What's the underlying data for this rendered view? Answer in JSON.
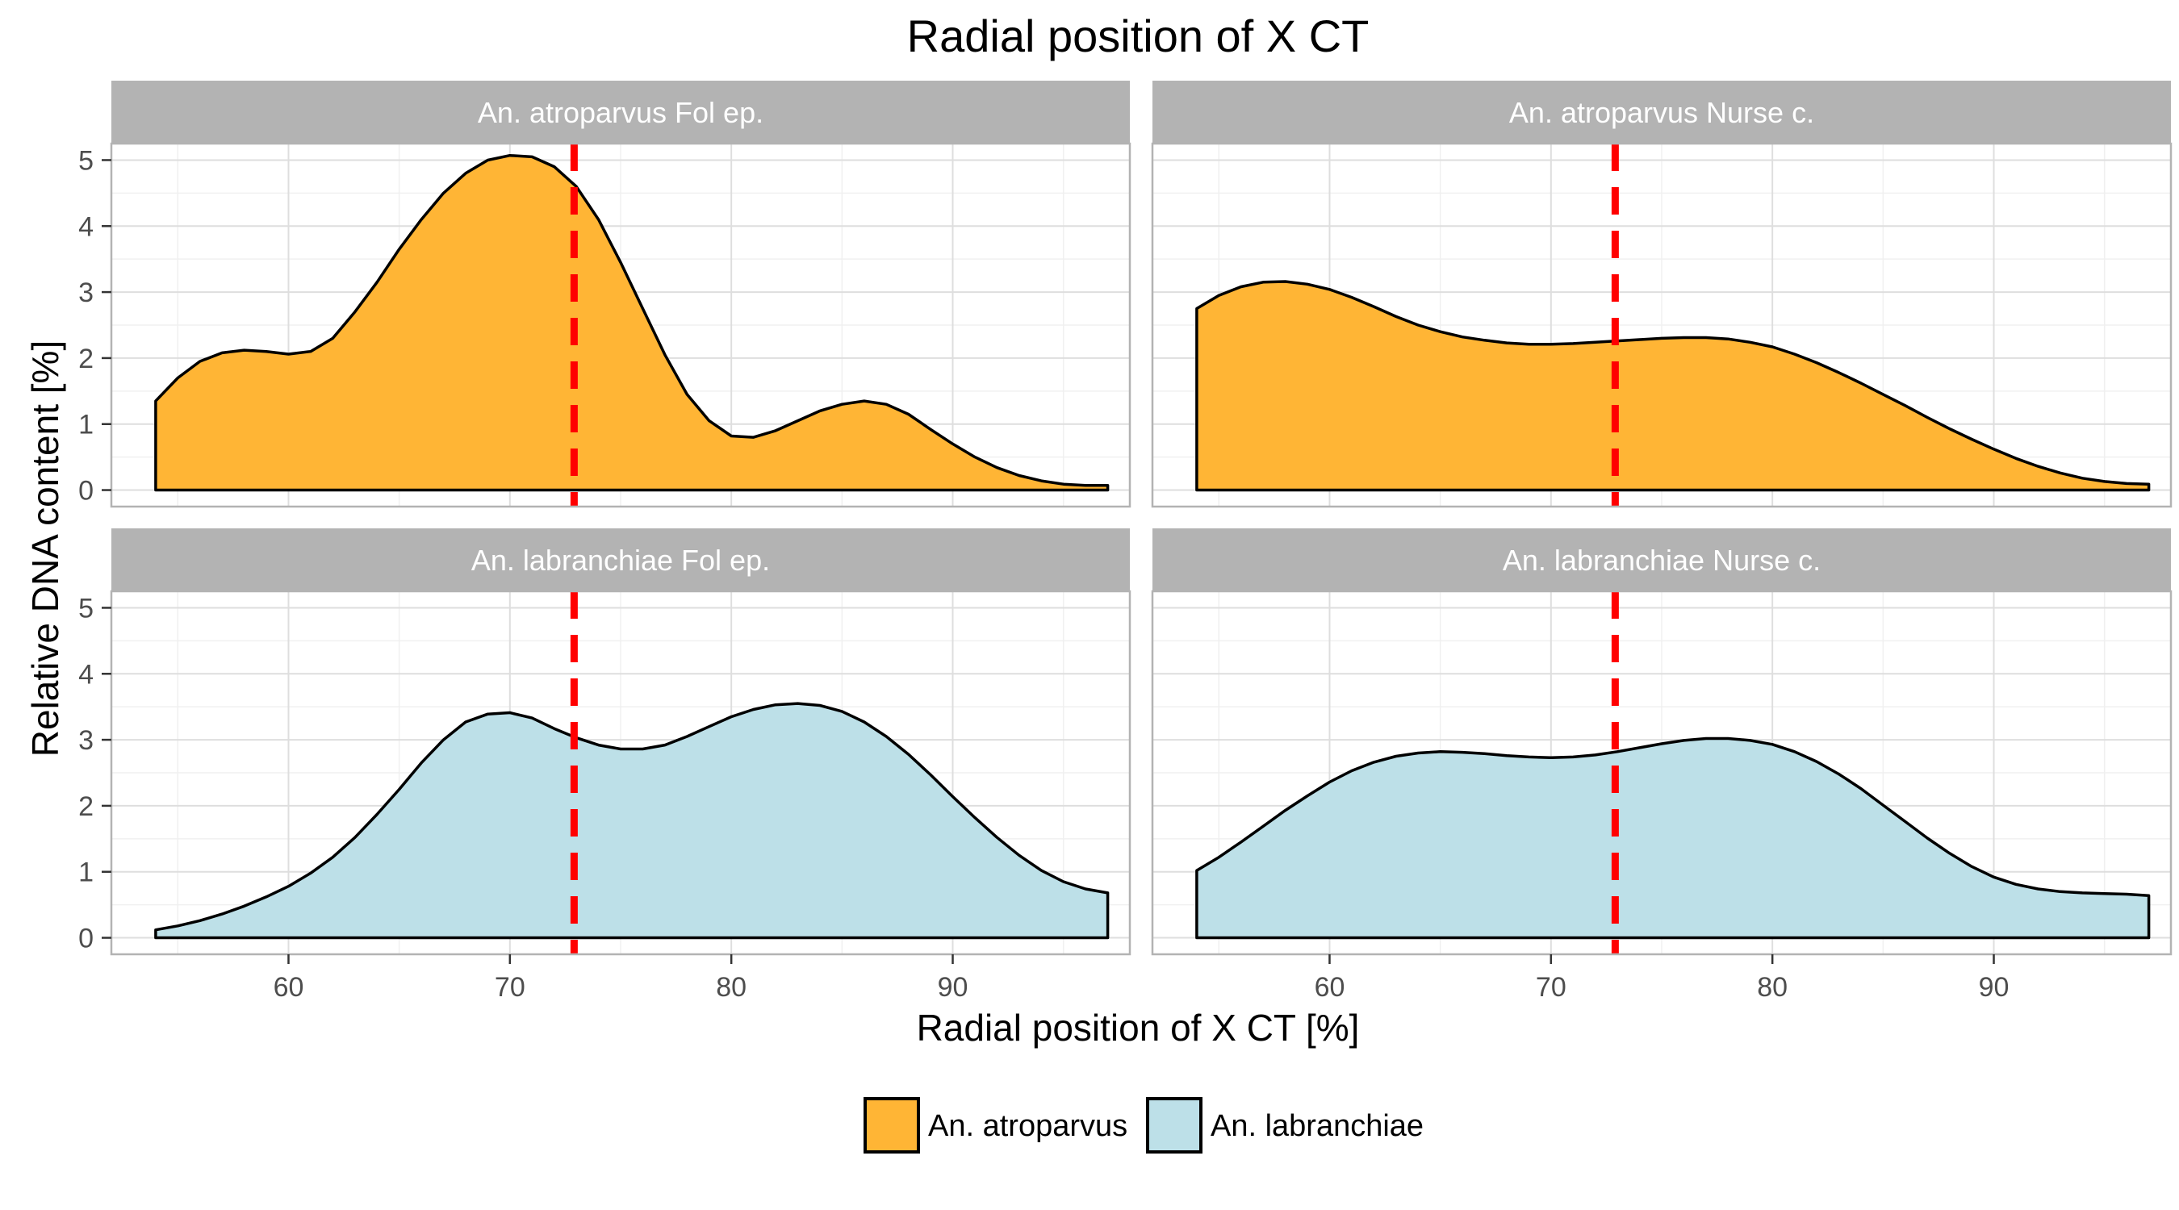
{
  "chart_data": {
    "type": "area",
    "title": "Radial position of X CT",
    "xlabel": "Radial position of X CT [%]",
    "ylabel": "Relative DNA content [%]",
    "xlim": [
      52,
      98
    ],
    "ylim": [
      -0.25,
      5.25
    ],
    "x_ticks": [
      60,
      70,
      80,
      90
    ],
    "y_ticks": [
      0,
      1,
      2,
      3,
      4,
      5
    ],
    "x_ticks_minor": [
      55,
      65,
      75,
      85,
      95
    ],
    "y_ticks_minor": [
      0.5,
      1.5,
      2.5,
      3.5,
      4.5
    ],
    "grid": true,
    "legend_position": "bottom",
    "reference_line": {
      "x": 72.9,
      "color": "#ff0000",
      "style": "dashed"
    },
    "series": [
      {
        "name": "An. atroparvus",
        "color": "#ffb535"
      },
      {
        "name": "An. labranchiae",
        "color": "#bde0e8"
      }
    ],
    "panels": [
      {
        "label": "An. atroparvus Fol ep.",
        "series": "An. atroparvus",
        "row": 0,
        "col": 0,
        "x": [
          54,
          55,
          56,
          57,
          58,
          59,
          60,
          61,
          62,
          63,
          64,
          65,
          66,
          67,
          68,
          69,
          70,
          71,
          72,
          73,
          74,
          75,
          76,
          77,
          78,
          79,
          80,
          81,
          82,
          83,
          84,
          85,
          86,
          87,
          88,
          89,
          90,
          91,
          92,
          93,
          94,
          95,
          96,
          97
        ],
        "y": [
          1.35,
          1.7,
          1.95,
          2.08,
          2.12,
          2.1,
          2.06,
          2.1,
          2.3,
          2.7,
          3.15,
          3.65,
          4.1,
          4.5,
          4.8,
          5.0,
          5.07,
          5.05,
          4.9,
          4.6,
          4.1,
          3.45,
          2.75,
          2.05,
          1.45,
          1.05,
          0.82,
          0.8,
          0.9,
          1.05,
          1.2,
          1.3,
          1.35,
          1.3,
          1.15,
          0.92,
          0.7,
          0.5,
          0.34,
          0.22,
          0.14,
          0.09,
          0.07,
          0.07
        ]
      },
      {
        "label": "An. atroparvus Nurse c.",
        "series": "An. atroparvus",
        "row": 0,
        "col": 1,
        "x": [
          54,
          55,
          56,
          57,
          58,
          59,
          60,
          61,
          62,
          63,
          64,
          65,
          66,
          67,
          68,
          69,
          70,
          71,
          72,
          73,
          74,
          75,
          76,
          77,
          78,
          79,
          80,
          81,
          82,
          83,
          84,
          85,
          86,
          87,
          88,
          89,
          90,
          91,
          92,
          93,
          94,
          95,
          96,
          97
        ],
        "y": [
          2.75,
          2.95,
          3.08,
          3.15,
          3.16,
          3.12,
          3.04,
          2.92,
          2.78,
          2.63,
          2.5,
          2.4,
          2.32,
          2.27,
          2.23,
          2.21,
          2.21,
          2.22,
          2.24,
          2.26,
          2.28,
          2.3,
          2.31,
          2.31,
          2.29,
          2.24,
          2.17,
          2.06,
          1.93,
          1.78,
          1.62,
          1.45,
          1.28,
          1.1,
          0.93,
          0.77,
          0.62,
          0.48,
          0.36,
          0.26,
          0.18,
          0.13,
          0.1,
          0.09
        ]
      },
      {
        "label": "An. labranchiae Fol ep.",
        "series": "An. labranchiae",
        "row": 1,
        "col": 0,
        "x": [
          54,
          55,
          56,
          57,
          58,
          59,
          60,
          61,
          62,
          63,
          64,
          65,
          66,
          67,
          68,
          69,
          70,
          71,
          72,
          73,
          74,
          75,
          76,
          77,
          78,
          79,
          80,
          81,
          82,
          83,
          84,
          85,
          86,
          87,
          88,
          89,
          90,
          91,
          92,
          93,
          94,
          95,
          96,
          97
        ],
        "y": [
          0.12,
          0.18,
          0.26,
          0.36,
          0.48,
          0.62,
          0.78,
          0.98,
          1.22,
          1.52,
          1.87,
          2.25,
          2.65,
          3.0,
          3.27,
          3.39,
          3.41,
          3.33,
          3.17,
          3.03,
          2.92,
          2.86,
          2.86,
          2.92,
          3.05,
          3.2,
          3.35,
          3.46,
          3.53,
          3.55,
          3.52,
          3.43,
          3.27,
          3.05,
          2.78,
          2.47,
          2.14,
          1.82,
          1.52,
          1.25,
          1.02,
          0.85,
          0.74,
          0.68
        ]
      },
      {
        "label": "An. labranchiae Nurse c.",
        "series": "An. labranchiae",
        "row": 1,
        "col": 1,
        "x": [
          54,
          55,
          56,
          57,
          58,
          59,
          60,
          61,
          62,
          63,
          64,
          65,
          66,
          67,
          68,
          69,
          70,
          71,
          72,
          73,
          74,
          75,
          76,
          77,
          78,
          79,
          80,
          81,
          82,
          83,
          84,
          85,
          86,
          87,
          88,
          89,
          90,
          91,
          92,
          93,
          94,
          95,
          96,
          97
        ],
        "y": [
          1.02,
          1.22,
          1.45,
          1.69,
          1.93,
          2.15,
          2.36,
          2.53,
          2.66,
          2.75,
          2.8,
          2.82,
          2.81,
          2.79,
          2.76,
          2.74,
          2.73,
          2.74,
          2.77,
          2.82,
          2.88,
          2.94,
          2.99,
          3.02,
          3.02,
          2.99,
          2.93,
          2.82,
          2.67,
          2.48,
          2.26,
          2.01,
          1.76,
          1.51,
          1.28,
          1.08,
          0.92,
          0.81,
          0.74,
          0.7,
          0.68,
          0.67,
          0.66,
          0.64
        ]
      }
    ]
  }
}
